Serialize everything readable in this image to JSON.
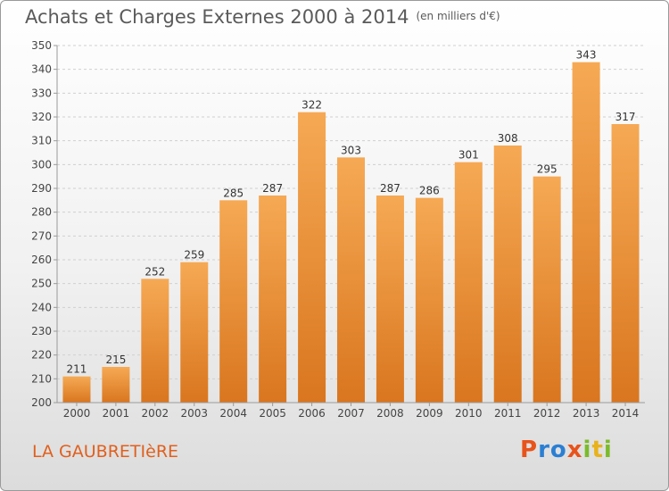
{
  "title": "Achats et Charges Externes 2000 à 2014",
  "unit": "(en milliers d'€)",
  "town": "LA GAUBRETIèRE",
  "logo": [
    "P",
    "r",
    "o",
    "x",
    "i",
    "t",
    "i"
  ],
  "colors": {
    "bar_top": "#f6a954",
    "bar_bottom": "#d9761f",
    "axis": "#9a9a9a",
    "grid": "#d0d0d0"
  },
  "chart_data": {
    "type": "bar",
    "categories": [
      "2000",
      "2001",
      "2002",
      "2003",
      "2004",
      "2005",
      "2006",
      "2007",
      "2008",
      "2009",
      "2010",
      "2011",
      "2012",
      "2013",
      "2014"
    ],
    "values": [
      211,
      215,
      252,
      259,
      285,
      287,
      322,
      303,
      287,
      286,
      301,
      308,
      295,
      343,
      317
    ],
    "ylim": [
      200,
      350
    ],
    "yticks": [
      200,
      210,
      220,
      230,
      240,
      250,
      260,
      270,
      280,
      290,
      300,
      310,
      320,
      330,
      340,
      350
    ],
    "grid": true,
    "xlabel": "",
    "ylabel": ""
  }
}
